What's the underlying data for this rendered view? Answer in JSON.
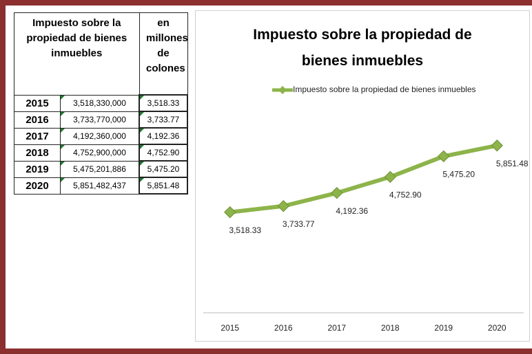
{
  "table": {
    "header": [
      "Impuesto sobre la propiedad de bienes inmuebles",
      "en millones de colones"
    ],
    "rows": [
      [
        "2015",
        "3,518,330,000",
        "3,518.33"
      ],
      [
        "2016",
        "3,733,770,000",
        "3,733.77"
      ],
      [
        "2017",
        "4,192,360,000",
        "4,192.36"
      ],
      [
        "2018",
        "4,752,900,000",
        "4,752.90"
      ],
      [
        "2019",
        "5,475,201,886",
        "5,475.20"
      ],
      [
        "2020",
        "5,851,482,437",
        "5,851.48"
      ]
    ]
  },
  "chart_data": {
    "type": "line",
    "title": "Impuesto sobre la propiedad de bienes inmuebles",
    "categories": [
      "2015",
      "2016",
      "2017",
      "2018",
      "2019",
      "2020"
    ],
    "series": [
      {
        "name": "Impuesto sobre la propiedad de bienes inmuebles",
        "color": "#8db44a",
        "values": [
          3518.33,
          3733.77,
          4192.36,
          4752.9,
          5475.2,
          5851.48
        ],
        "value_labels": [
          "3,518.33",
          "3,733.77",
          "4,192.36",
          "4,752.90",
          "5,475.20",
          "5,851.48"
        ]
      }
    ],
    "ylim": [
      0,
      7000
    ],
    "grid": false,
    "legend": "top"
  }
}
